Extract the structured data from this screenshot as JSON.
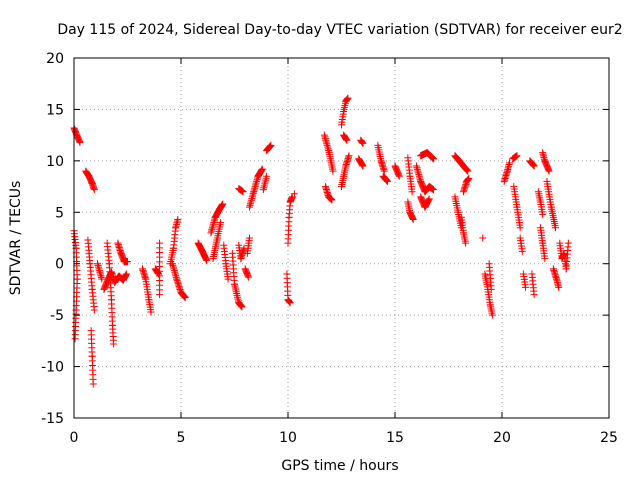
{
  "chart_data": {
    "type": "scatter",
    "title": "Day 115 of 2024, Sidereal Day-to-day VTEC variation (SDTVAR) for receiver eur2",
    "xlabel": "GPS time / hours",
    "ylabel": "SDTVAR / TECUs",
    "xlim": [
      0,
      25
    ],
    "ylim": [
      -15,
      20
    ],
    "xticks": [
      "0",
      "5",
      "10",
      "15",
      "20",
      "25"
    ],
    "yticks": [
      "-15",
      "-10",
      "-5",
      "0",
      "5",
      "10",
      "15",
      "20"
    ],
    "grid": true,
    "marker": "plus",
    "color": "#ff0000",
    "segments": [
      [
        0.0,
        13.2,
        0.15,
        12.4,
        0.28,
        11.8
      ],
      [
        0.0,
        3.2,
        0.1,
        1.5,
        0.15,
        -1.5,
        0.1,
        -4.5,
        0.05,
        -7.3
      ],
      [
        0.55,
        9.0,
        0.7,
        8.5,
        0.85,
        7.8,
        0.95,
        7.2
      ],
      [
        0.65,
        2.3,
        0.75,
        0.0,
        0.85,
        -2.5,
        0.95,
        -4.5
      ],
      [
        0.8,
        -6.5,
        0.85,
        -9.0,
        0.9,
        -11.7
      ],
      [
        1.1,
        0.0,
        1.3,
        -1.5
      ],
      [
        1.4,
        -2.5,
        1.6,
        -1.5,
        1.75,
        -0.8,
        1.9,
        -1.8,
        2.1,
        -1.2,
        2.3,
        -1.6,
        2.45,
        -1.0
      ],
      [
        1.55,
        2.0,
        1.65,
        0.0,
        1.75,
        -3.5,
        1.8,
        -6.0,
        1.85,
        -7.8
      ],
      [
        2.05,
        2.0,
        2.2,
        1.0,
        2.35,
        0.2,
        2.5,
        0.2
      ],
      [
        3.2,
        -0.5,
        3.35,
        -1.5,
        3.5,
        -3.5,
        3.6,
        -4.7
      ],
      [
        3.8,
        -0.5,
        3.95,
        -1.0
      ],
      [
        4.0,
        -3.0,
        4.0,
        2.0
      ],
      [
        4.5,
        0.0,
        4.65,
        1.5,
        4.75,
        3.5,
        4.85,
        4.3
      ],
      [
        4.6,
        0.0,
        4.8,
        -1.5,
        5.0,
        -2.8,
        5.2,
        -3.3
      ],
      [
        5.8,
        2.0,
        6.0,
        1.2,
        6.2,
        0.3
      ],
      [
        6.4,
        3.0,
        6.6,
        4.5,
        6.8,
        5.3,
        6.95,
        5.8
      ],
      [
        6.5,
        0.5,
        6.7,
        2.5,
        6.85,
        4.0
      ],
      [
        7.0,
        1.8,
        7.1,
        0.0,
        7.2,
        -1.5
      ],
      [
        7.4,
        1.0,
        7.5,
        -2.0,
        7.7,
        -3.8,
        7.85,
        -4.2
      ],
      [
        7.7,
        1.8,
        7.8,
        0.5,
        7.95,
        1.5
      ],
      [
        7.7,
        7.3,
        7.9,
        7.0
      ],
      [
        8.0,
        -0.5,
        8.15,
        -1.3
      ],
      [
        8.1,
        1.0,
        8.2,
        2.5
      ],
      [
        8.2,
        5.5,
        8.4,
        7.0,
        8.6,
        8.5,
        8.8,
        9.2
      ],
      [
        8.85,
        7.2,
        9.0,
        8.5
      ],
      [
        9.0,
        11.0,
        9.2,
        11.5
      ],
      [
        10.0,
        2.0,
        10.05,
        4.5,
        10.1,
        6.0,
        10.2,
        6.5
      ],
      [
        9.95,
        -1.0,
        10.0,
        -3.5,
        10.1,
        -3.8
      ],
      [
        10.3,
        6.8
      ],
      [
        11.7,
        12.5,
        11.9,
        11.0,
        12.1,
        9.0
      ],
      [
        11.75,
        7.5,
        11.9,
        6.5,
        12.05,
        6.2
      ],
      [
        12.5,
        7.5,
        12.6,
        8.5,
        12.7,
        9.5,
        12.85,
        10.5
      ],
      [
        12.5,
        13.5,
        12.6,
        14.8,
        12.7,
        15.8,
        12.8,
        16.1
      ],
      [
        12.6,
        12.5,
        12.75,
        12.0
      ],
      [
        13.3,
        10.2,
        13.5,
        9.5
      ],
      [
        13.4,
        12.0,
        13.5,
        11.7
      ],
      [
        14.2,
        11.5,
        14.35,
        10.0,
        14.5,
        9.0
      ],
      [
        14.45,
        8.5,
        14.65,
        8.0
      ],
      [
        15.0,
        9.5,
        15.2,
        8.5
      ],
      [
        15.6,
        10.3,
        15.7,
        8.5,
        15.8,
        7.0
      ],
      [
        15.6,
        6.0,
        15.7,
        5.0,
        15.85,
        4.3
      ],
      [
        16.0,
        9.5,
        16.2,
        8.0,
        16.4,
        7.0,
        16.6,
        7.5,
        16.8,
        7.2
      ],
      [
        16.2,
        10.5,
        16.5,
        10.8,
        16.8,
        10.2
      ],
      [
        16.2,
        6.5,
        16.4,
        5.5,
        16.6,
        6.3
      ],
      [
        17.8,
        10.5,
        18.0,
        10.0,
        18.2,
        9.5,
        18.4,
        9.0
      ],
      [
        17.8,
        6.5,
        17.95,
        5.0,
        18.1,
        3.5
      ],
      [
        18.2,
        7.0,
        18.35,
        8.0,
        18.45,
        8.3
      ],
      [
        18.1,
        4.5,
        18.2,
        3.0,
        18.3,
        2.0
      ],
      [
        19.1,
        2.5
      ],
      [
        19.2,
        -1.0,
        19.3,
        -2.0,
        19.45,
        -4.0,
        19.55,
        -5.0
      ],
      [
        19.4,
        0.0,
        19.5,
        -2.5
      ],
      [
        20.1,
        8.0,
        20.25,
        9.0,
        20.35,
        9.8
      ],
      [
        20.5,
        10.2,
        20.7,
        10.5
      ],
      [
        20.55,
        7.5,
        20.7,
        5.5,
        20.85,
        3.5
      ],
      [
        20.85,
        2.5,
        20.95,
        1.2
      ],
      [
        21.0,
        -1.0,
        21.1,
        -2.3
      ],
      [
        21.3,
        10.0,
        21.5,
        9.5
      ],
      [
        21.4,
        -1.0,
        21.5,
        -3.0
      ],
      [
        21.7,
        7.0,
        21.8,
        6.0,
        21.9,
        4.8
      ],
      [
        21.9,
        10.8,
        22.0,
        10.0,
        22.2,
        9.0
      ],
      [
        21.8,
        3.5,
        21.9,
        2.0,
        22.0,
        0.5
      ],
      [
        22.1,
        8.0,
        22.3,
        5.5,
        22.5,
        3.5
      ],
      [
        22.4,
        -0.5,
        22.55,
        -1.5,
        22.65,
        -2.3
      ],
      [
        22.7,
        2.0,
        22.8,
        0.5,
        22.9,
        1.0,
        23.0,
        -0.5,
        23.1,
        2.0
      ]
    ]
  }
}
